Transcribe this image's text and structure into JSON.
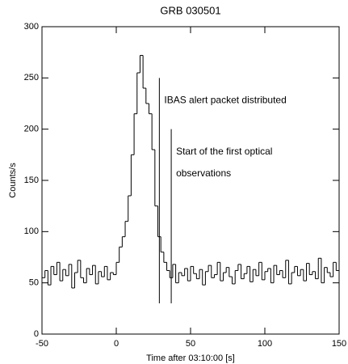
{
  "chart_data": {
    "type": "step",
    "title": "GRB 030501",
    "xlabel": "Time after 03:10:00 [s]",
    "ylabel": "Counts/s",
    "x": [
      -50,
      -48,
      -46,
      -44,
      -42,
      -40,
      -38,
      -36,
      -34,
      -32,
      -30,
      -28,
      -26,
      -24,
      -22,
      -20,
      -18,
      -16,
      -14,
      -12,
      -10,
      -8,
      -6,
      -4,
      -2,
      0,
      2,
      4,
      6,
      8,
      10,
      12,
      14,
      16,
      18,
      20,
      22,
      24,
      26,
      28,
      30,
      32,
      34,
      36,
      38,
      40,
      42,
      44,
      46,
      48,
      50,
      52,
      54,
      56,
      58,
      60,
      62,
      64,
      66,
      68,
      70,
      72,
      74,
      76,
      78,
      80,
      82,
      84,
      86,
      88,
      90,
      92,
      94,
      96,
      98,
      100,
      102,
      104,
      106,
      108,
      110,
      112,
      114,
      116,
      118,
      120,
      122,
      124,
      126,
      128,
      130,
      132,
      134,
      136,
      138,
      140,
      142,
      144,
      146,
      148
    ],
    "values": [
      55,
      62,
      48,
      66,
      58,
      70,
      52,
      63,
      57,
      68,
      45,
      60,
      72,
      55,
      50,
      64,
      58,
      67,
      49,
      61,
      56,
      66,
      53,
      60,
      58,
      70,
      85,
      95,
      110,
      135,
      175,
      215,
      255,
      272,
      240,
      225,
      215,
      180,
      125,
      95,
      80,
      70,
      62,
      55,
      68,
      50,
      60,
      57,
      64,
      52,
      66,
      59,
      54,
      63,
      48,
      61,
      67,
      55,
      58,
      70,
      52,
      60,
      65,
      56,
      49,
      62,
      68,
      54,
      59,
      66,
      51,
      63,
      57,
      70,
      53,
      61,
      64,
      50,
      67,
      58,
      62,
      55,
      72,
      49,
      60,
      66,
      57,
      63,
      52,
      69,
      58,
      61,
      54,
      74,
      50,
      65,
      60,
      56,
      70,
      62
    ],
    "color": "#000000",
    "xlim": [
      -50,
      150
    ],
    "xticks": [
      -50,
      0,
      50,
      100,
      150
    ],
    "ylim": [
      0,
      300
    ],
    "yticks": [
      0,
      50,
      100,
      150,
      200,
      250,
      300
    ],
    "annotations": [
      {
        "lines": [
          "IBAS alert packet distributed"
        ],
        "x": 29,
        "y_range": [
          30,
          250
        ]
      },
      {
        "lines": [
          "Start of the first optical",
          "observations"
        ],
        "x": 37,
        "y_range": [
          30,
          200
        ]
      }
    ]
  }
}
